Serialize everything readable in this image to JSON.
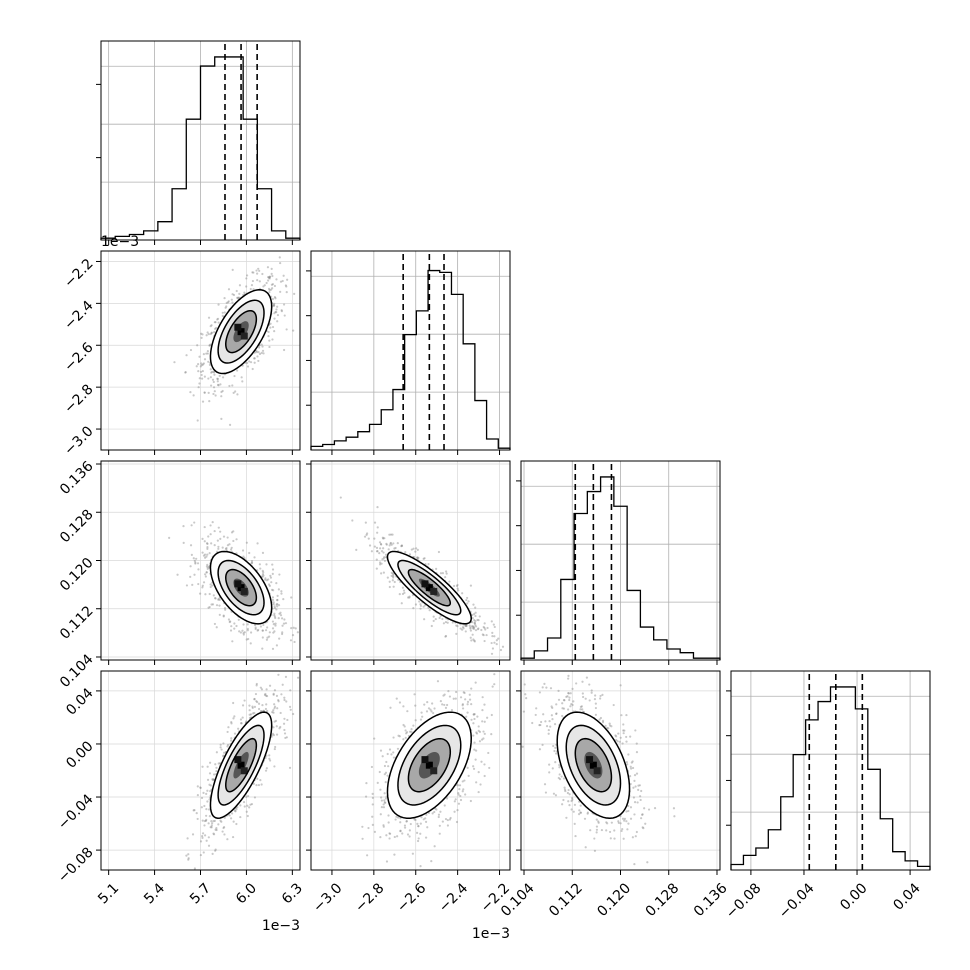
{
  "chart_data": {
    "type": "corner",
    "parameters": 4,
    "histogram_color": "#000000",
    "scatter_color": "#888888",
    "grid": true,
    "quantiles": [
      0.16,
      0.5,
      0.84
    ],
    "params": [
      {
        "index": 0,
        "range": [
          5.05,
          6.35
        ],
        "ticks": [
          5.1,
          5.4,
          5.7,
          6.0,
          6.3
        ],
        "tick_labels": [
          "5.1",
          "5.4",
          "5.7",
          "6.0",
          "6.3"
        ],
        "offset_label": "1e−3",
        "quantile_values": [
          5.86,
          5.965,
          6.07
        ],
        "center": 5.965,
        "sigma": 0.1,
        "hist": [
          0.01,
          0.02,
          0.03,
          0.05,
          0.1,
          0.28,
          0.66,
          0.95,
          1.0,
          1.0,
          0.66,
          0.28,
          0.05,
          0.01
        ]
      },
      {
        "index": 1,
        "range": [
          -3.1,
          -2.15
        ],
        "ticks": [
          -3.0,
          -2.8,
          -2.6,
          -2.4,
          -2.2
        ],
        "tick_labels": [
          "−3.0",
          "−2.8",
          "−2.6",
          "−2.4",
          "−2.2"
        ],
        "offset_label": "1e−3",
        "quantile_values": [
          -2.66,
          -2.535,
          -2.465
        ],
        "center": -2.535,
        "sigma": 0.1,
        "hist": [
          0.02,
          0.03,
          0.05,
          0.07,
          0.1,
          0.14,
          0.22,
          0.33,
          0.63,
          0.76,
          0.98,
          0.97,
          0.85,
          0.58,
          0.27,
          0.06,
          0.01
        ]
      },
      {
        "index": 2,
        "range": [
          0.1035,
          0.1365
        ],
        "ticks": [
          0.104,
          0.112,
          0.12,
          0.128,
          0.136
        ],
        "tick_labels": [
          "0.104",
          "0.112",
          "0.120",
          "0.128",
          "0.136"
        ],
        "offset_label": "",
        "quantile_values": [
          0.1125,
          0.1155,
          0.1185
        ],
        "center": 0.1155,
        "sigma": 0.003,
        "hist": [
          0.01,
          0.05,
          0.12,
          0.44,
          0.8,
          0.92,
          1.0,
          0.84,
          0.38,
          0.18,
          0.11,
          0.06,
          0.04,
          0.01,
          0.01
        ]
      },
      {
        "index": 3,
        "range": [
          -0.095,
          0.055
        ],
        "ticks": [
          -0.08,
          -0.04,
          0.0,
          0.04
        ],
        "tick_labels": [
          "−0.08",
          "−0.04",
          "0.00",
          "0.04"
        ],
        "offset_label": "",
        "quantile_values": [
          -0.036,
          -0.016,
          0.004
        ],
        "center": -0.016,
        "sigma": 0.02,
        "hist": [
          0.03,
          0.08,
          0.12,
          0.22,
          0.4,
          0.63,
          0.82,
          0.92,
          1.0,
          1.0,
          0.88,
          0.55,
          0.28,
          0.1,
          0.05,
          0.02
        ]
      }
    ],
    "pairs": [
      {
        "x": 0,
        "y": 1,
        "correlation": 0.6
      },
      {
        "x": 0,
        "y": 2,
        "correlation": -0.55
      },
      {
        "x": 1,
        "y": 2,
        "correlation": -0.85
      },
      {
        "x": 0,
        "y": 3,
        "correlation": 0.75
      },
      {
        "x": 1,
        "y": 3,
        "correlation": 0.5
      },
      {
        "x": 2,
        "y": 3,
        "correlation": -0.45
      }
    ],
    "contour_levels_sigma": [
      0.5,
      1.0,
      1.5,
      2.0
    ]
  }
}
